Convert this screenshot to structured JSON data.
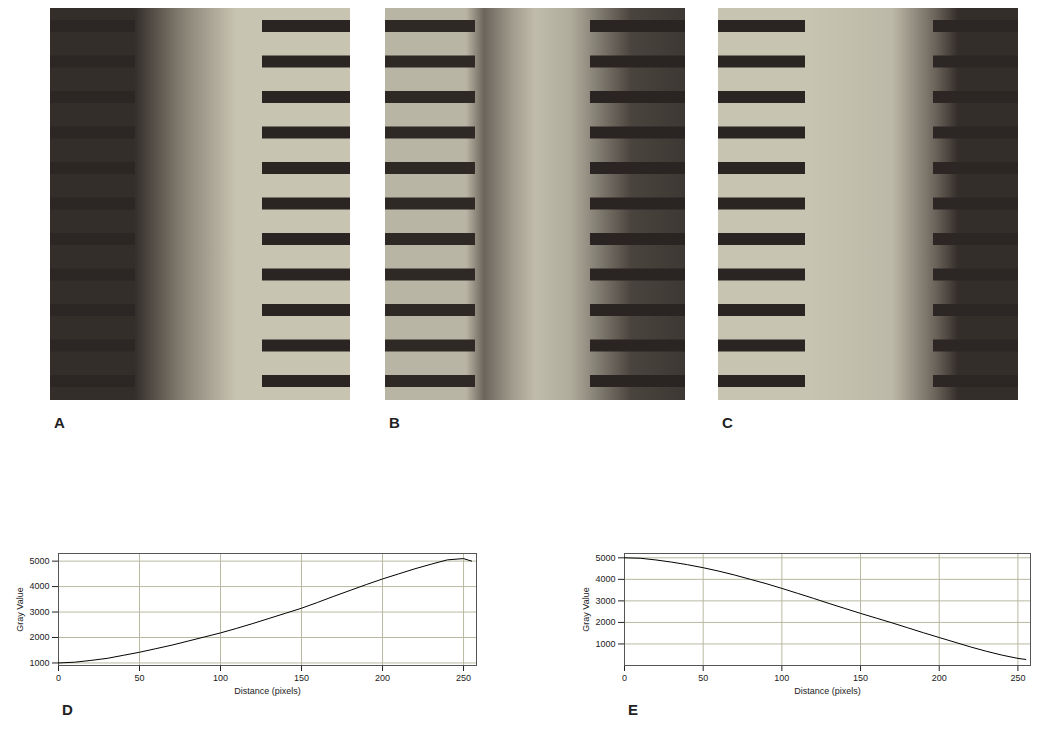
{
  "panels": [
    {
      "label": "A"
    },
    {
      "label": "B"
    },
    {
      "label": "C"
    }
  ],
  "chart_data": [
    {
      "type": "line",
      "panel": "D",
      "x_label": "Distance (pixels)",
      "y_label": "Gray Value",
      "x": [
        0,
        10,
        20,
        30,
        40,
        50,
        60,
        70,
        80,
        90,
        100,
        110,
        120,
        130,
        140,
        150,
        160,
        170,
        180,
        190,
        200,
        210,
        220,
        230,
        240,
        250,
        255
      ],
      "values": [
        1000,
        1030,
        1100,
        1180,
        1300,
        1420,
        1560,
        1700,
        1860,
        2020,
        2180,
        2360,
        2550,
        2750,
        2950,
        3150,
        3380,
        3620,
        3850,
        4080,
        4300,
        4500,
        4700,
        4880,
        5050,
        5100,
        5000
      ],
      "color": "#000000",
      "xlim": [
        0,
        258
      ],
      "xticks": [
        0,
        50,
        100,
        150,
        200,
        250
      ],
      "ylim": [
        900,
        5300
      ],
      "yticks": [
        1000,
        2000,
        3000,
        4000,
        5000
      ],
      "grid": true
    },
    {
      "type": "line",
      "panel": "E",
      "x_label": "Distance (pixels)",
      "y_label": "Gray Value",
      "x": [
        0,
        10,
        20,
        30,
        40,
        50,
        60,
        70,
        80,
        90,
        100,
        110,
        120,
        130,
        140,
        150,
        160,
        170,
        180,
        190,
        200,
        210,
        220,
        230,
        240,
        250,
        255
      ],
      "values": [
        5000,
        4980,
        4900,
        4800,
        4680,
        4540,
        4380,
        4200,
        4000,
        3800,
        3580,
        3350,
        3120,
        2880,
        2650,
        2420,
        2200,
        1980,
        1750,
        1520,
        1300,
        1080,
        860,
        660,
        480,
        330,
        280
      ],
      "color": "#000000",
      "xlim": [
        0,
        258
      ],
      "xticks": [
        0,
        50,
        100,
        150,
        200,
        250
      ],
      "ylim": [
        0,
        5200
      ],
      "yticks": [
        1000,
        2000,
        3000,
        4000,
        5000
      ],
      "grid": true
    }
  ]
}
